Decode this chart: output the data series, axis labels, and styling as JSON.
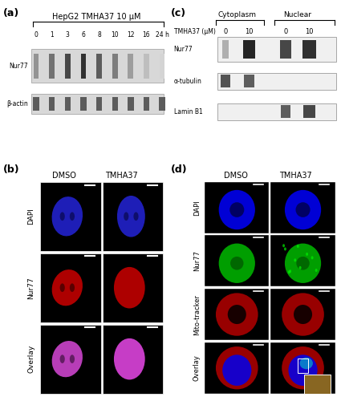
{
  "fig_width": 4.25,
  "fig_height": 5.0,
  "dpi": 100,
  "bg_color": "#ffffff",
  "panel_a": {
    "label": "(a)",
    "title": "HepG2 TMHA37 10 μM",
    "timepoints": [
      "0",
      "1",
      "3",
      "6",
      "8",
      "10",
      "12",
      "16",
      "24 h"
    ],
    "row_labels": [
      "Nur77",
      "β-actin"
    ],
    "blot_bg": "#d8d8d8",
    "nur77_intensities": [
      0.5,
      0.65,
      0.85,
      0.95,
      0.75,
      0.6,
      0.45,
      0.3,
      0.2
    ],
    "actin_intensity": 0.75
  },
  "panel_b": {
    "label": "(b)",
    "col_labels": [
      "DMSO",
      "TMHA37"
    ],
    "row_labels": [
      "DAPI",
      "Nur77",
      "Overlay"
    ],
    "dapi_color": "#2222cc",
    "nur77_color": "#cc0000",
    "overlay_color_dmso": "#cc44cc",
    "overlay_color_tmha": "#dd44dd"
  },
  "panel_c": {
    "label": "(c)",
    "cytoplasm_label": "Cytoplasm",
    "nuclear_label": "Nuclear",
    "tmha_label": "TMHA37 (μM)",
    "col_labels": [
      "0",
      "10",
      "0",
      "10"
    ],
    "row_labels": [
      "Nur77",
      "α-tubulin",
      "Lamin B1"
    ],
    "blot_bg": "#f0f0f0"
  },
  "panel_d": {
    "label": "(d)",
    "col_labels": [
      "DMSO",
      "TMHA37"
    ],
    "row_labels": [
      "DAPI",
      "Nur77",
      "Mito-tracker",
      "Overlay"
    ],
    "dapi_color": "#0000ee",
    "nur77_color": "#00bb00",
    "mito_color": "#cc0000"
  }
}
